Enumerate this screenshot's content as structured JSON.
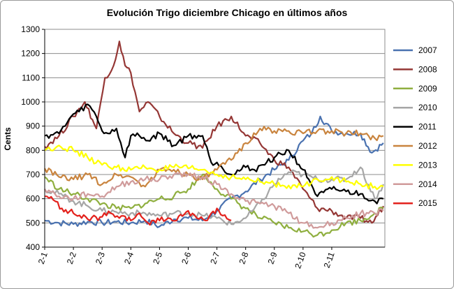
{
  "chart_data": {
    "type": "line",
    "title": "Evolución Trigo diciembre Chicago en últimos años",
    "xlabel": "",
    "ylabel": "Cents",
    "ylim": [
      400,
      1300
    ],
    "yticks": [
      400,
      500,
      600,
      700,
      800,
      900,
      1000,
      1100,
      1200,
      1300
    ],
    "x_categories": [
      "2-1",
      "2-2",
      "2-3",
      "2-4",
      "2-5",
      "2-6",
      "2-7",
      "2-8",
      "2-9",
      "2-10",
      "2-11"
    ],
    "grid": "horizontal",
    "legend_position": "right",
    "series": [
      {
        "name": "2007",
        "color": "#4a72b0",
        "x": [
          0,
          0.5,
          1,
          1.5,
          2,
          2.5,
          3,
          3.5,
          4,
          4.5,
          5,
          5.5,
          6,
          6.5,
          7,
          7.5,
          8,
          8.5,
          9,
          9.3,
          9.6,
          10,
          10.5,
          11,
          11.4,
          11.8
        ],
        "values": [
          510,
          500,
          495,
          505,
          500,
          505,
          500,
          510,
          485,
          515,
          520,
          510,
          550,
          600,
          630,
          680,
          720,
          760,
          840,
          870,
          940,
          880,
          870,
          870,
          790,
          830
        ]
      },
      {
        "name": "2008",
        "color": "#953735",
        "x": [
          0,
          0.5,
          1,
          1.4,
          1.8,
          2.1,
          2.4,
          2.6,
          2.8,
          3,
          3.3,
          3.6,
          4,
          4.5,
          5,
          5.5,
          6,
          6.5,
          7,
          7.5,
          8,
          8.5,
          9,
          9.5,
          10,
          10.5,
          11,
          11.4,
          11.8
        ],
        "values": [
          815,
          860,
          940,
          1000,
          890,
          1100,
          1150,
          1250,
          1150,
          1120,
          960,
          1000,
          940,
          870,
          830,
          810,
          900,
          940,
          860,
          830,
          760,
          730,
          640,
          560,
          550,
          520,
          520,
          500,
          570
        ]
      },
      {
        "name": "2009",
        "color": "#8faf3f",
        "x": [
          0,
          0.5,
          1,
          1.5,
          2,
          2.5,
          3,
          3.5,
          4,
          4.5,
          5,
          5.5,
          6,
          6.5,
          7,
          7.5,
          8,
          8.5,
          9,
          9.5,
          10,
          10.5,
          11,
          11.5,
          11.8
        ],
        "values": [
          690,
          640,
          620,
          600,
          580,
          560,
          560,
          580,
          600,
          610,
          640,
          700,
          640,
          600,
          560,
          520,
          500,
          480,
          465,
          450,
          470,
          500,
          510,
          540,
          560
        ]
      },
      {
        "name": "2010",
        "color": "#a6a6a6",
        "x": [
          0,
          0.5,
          1,
          1.5,
          2,
          2.5,
          3,
          3.5,
          4,
          4.5,
          5,
          5.5,
          6,
          6.5,
          7,
          7.5,
          8,
          8.5,
          9,
          9.5,
          10,
          10.5,
          11,
          11.5,
          11.8
        ],
        "values": [
          640,
          620,
          590,
          570,
          550,
          545,
          540,
          540,
          530,
          540,
          540,
          530,
          520,
          495,
          520,
          580,
          660,
          710,
          700,
          680,
          680,
          680,
          730,
          600,
          660
        ]
      },
      {
        "name": "2011",
        "color": "#000000",
        "x": [
          0,
          0.5,
          1,
          1.2,
          1.5,
          1.8,
          2,
          2.2,
          2.5,
          2.8,
          3,
          3.3,
          3.6,
          4,
          4.5,
          5,
          5.5,
          5.8,
          6,
          6.5,
          7,
          7.3,
          7.6,
          8,
          8.5,
          9,
          9.2,
          9.5,
          10,
          10.5,
          11,
          11.5,
          11.8
        ],
        "values": [
          860,
          870,
          950,
          960,
          990,
          940,
          880,
          870,
          890,
          770,
          860,
          860,
          840,
          870,
          820,
          860,
          860,
          750,
          750,
          700,
          730,
          720,
          740,
          770,
          800,
          720,
          680,
          610,
          640,
          630,
          620,
          590,
          600
        ]
      },
      {
        "name": "2012",
        "color": "#c9843e",
        "x": [
          0,
          0.5,
          1,
          1.5,
          2,
          2.5,
          3,
          3.5,
          4,
          4.5,
          5,
          5.5,
          6,
          6.5,
          7,
          7.5,
          8,
          8.5,
          9,
          9.5,
          10,
          10.5,
          11,
          11.5,
          11.8
        ],
        "values": [
          725,
          690,
          680,
          700,
          660,
          700,
          690,
          650,
          720,
          720,
          700,
          680,
          720,
          760,
          830,
          890,
          880,
          880,
          870,
          880,
          880,
          870,
          870,
          850,
          860
        ]
      },
      {
        "name": "2013",
        "color": "#ffff00",
        "x": [
          0,
          0.5,
          1,
          1.5,
          2,
          2.5,
          3,
          3.5,
          4,
          4.5,
          5,
          5.5,
          6,
          6.5,
          7,
          7.5,
          8,
          8.5,
          9,
          9.5,
          10,
          10.5,
          11,
          11.5,
          11.8
        ],
        "values": [
          800,
          820,
          800,
          770,
          740,
          730,
          720,
          730,
          720,
          730,
          725,
          720,
          700,
          690,
          680,
          670,
          660,
          655,
          650,
          680,
          690,
          670,
          660,
          650,
          650
        ]
      },
      {
        "name": "2014",
        "color": "#d09b9b",
        "x": [
          0,
          0.5,
          1,
          1.5,
          2,
          2.5,
          3,
          3.5,
          4,
          4.5,
          5,
          5.5,
          6,
          6.5,
          7,
          7.5,
          8,
          8.5,
          9,
          9.5,
          10,
          10.5,
          11,
          11.5,
          11.8
        ],
        "values": [
          640,
          610,
          600,
          620,
          610,
          650,
          670,
          680,
          680,
          700,
          700,
          690,
          660,
          620,
          590,
          580,
          570,
          540,
          500,
          480,
          500,
          520,
          540,
          540,
          550
        ]
      },
      {
        "name": "2015",
        "color": "#e3211c",
        "x": [
          0,
          0.3,
          0.6,
          1,
          1.5,
          2,
          2.3,
          2.6,
          3,
          3.3,
          3.6,
          4,
          4.3,
          4.6,
          5,
          5.3,
          5.6,
          6,
          6.2,
          6.5
        ],
        "values": [
          610,
          595,
          560,
          540,
          515,
          525,
          540,
          520,
          510,
          540,
          500,
          510,
          520,
          510,
          550,
          520,
          510,
          560,
          530,
          510
        ]
      }
    ]
  }
}
